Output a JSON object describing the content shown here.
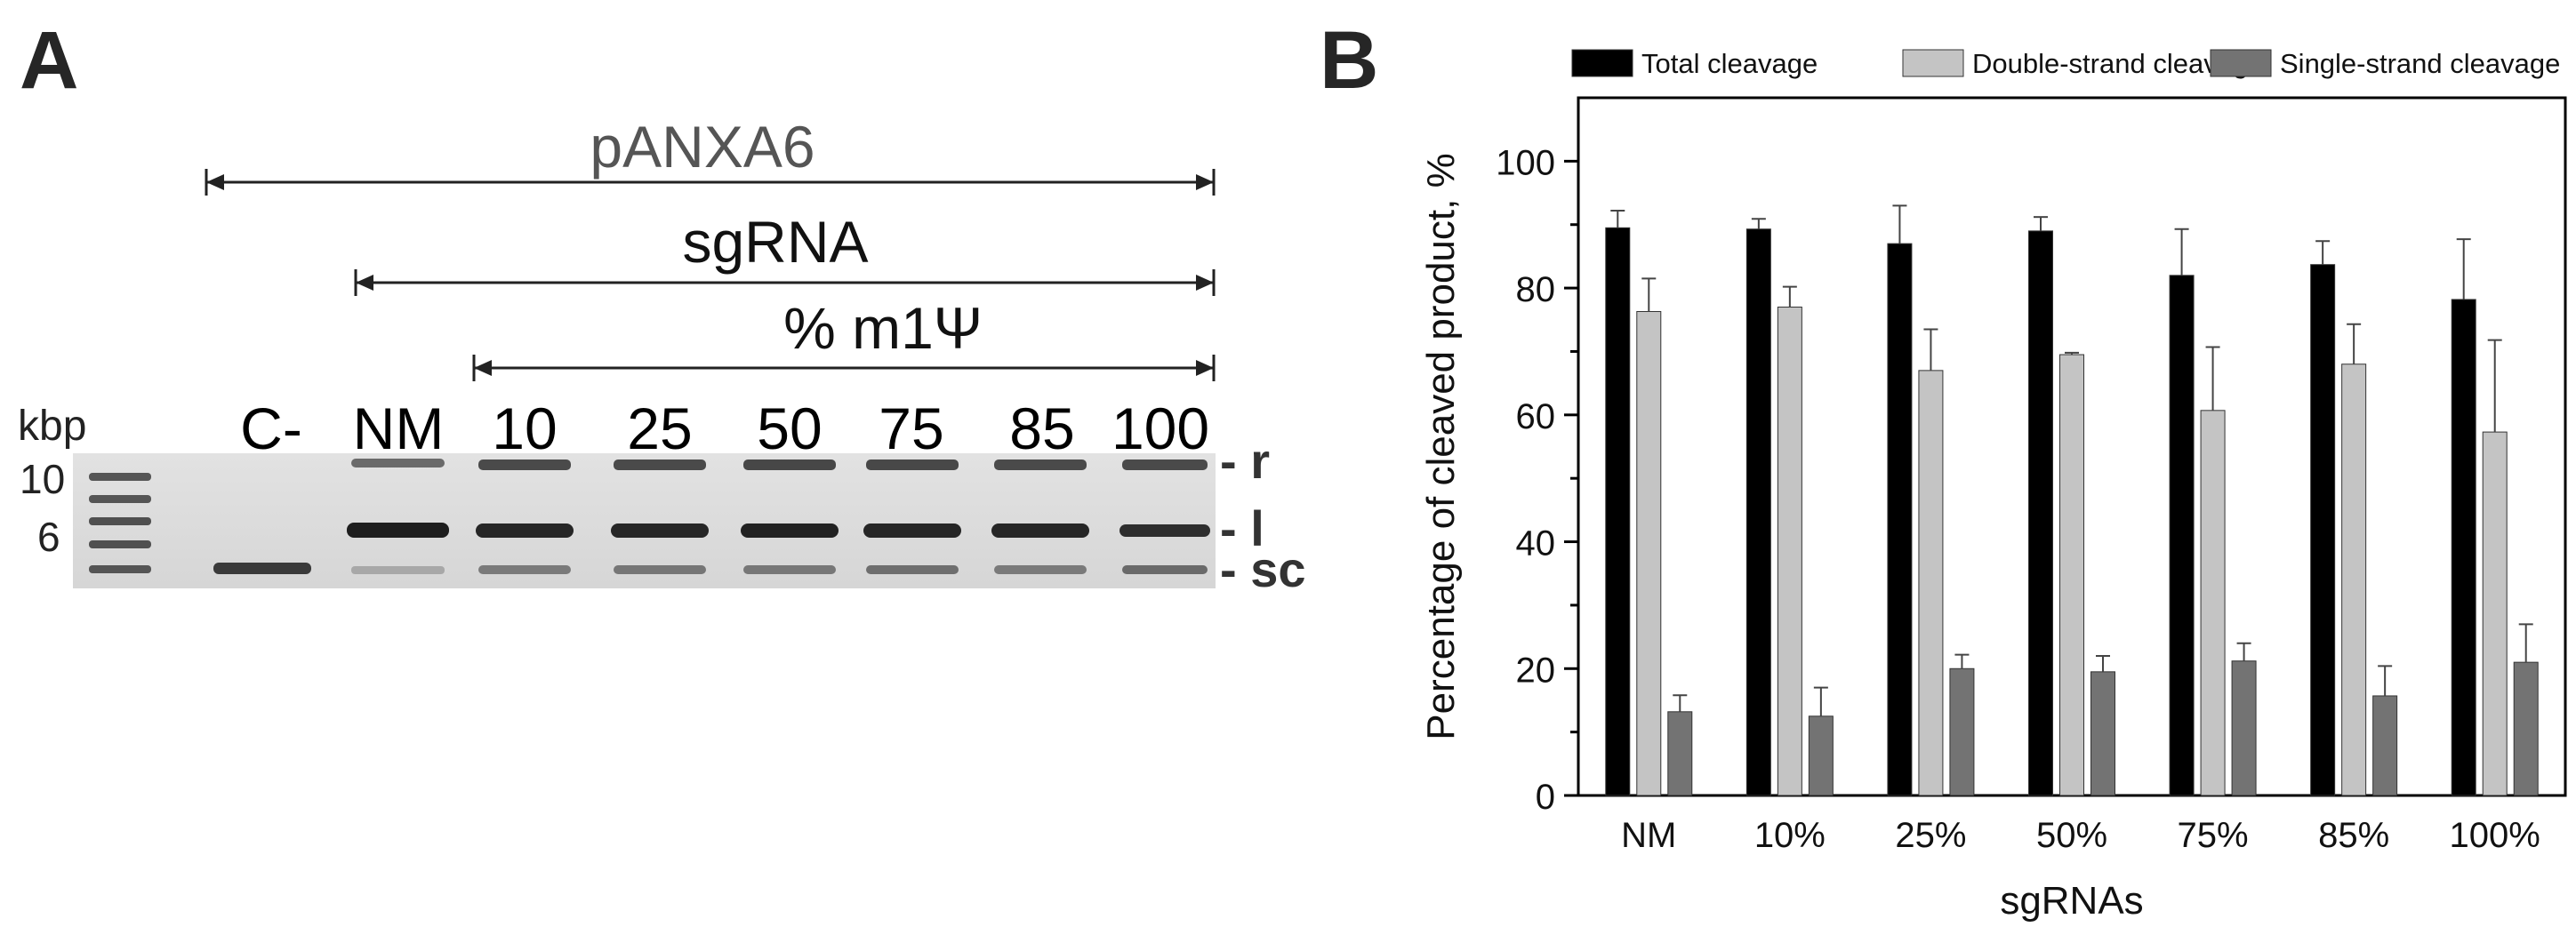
{
  "panel_a": {
    "letter": "A",
    "brackets": [
      {
        "label": "pANXA6"
      },
      {
        "label": "sgRNA"
      },
      {
        "label": "% m1Ψ"
      }
    ],
    "lane_labels": [
      "C-",
      "NM",
      "10",
      "25",
      "50",
      "75",
      "85",
      "100"
    ],
    "ladder_unit": "kbp",
    "ladder_marks": [
      "10",
      "6"
    ],
    "band_labels": [
      "- r",
      "- l",
      "- sc"
    ]
  },
  "panel_b": {
    "letter": "B",
    "chart_data": {
      "type": "bar",
      "categories": [
        "NM",
        "10%",
        "25%",
        "50%",
        "75%",
        "85%",
        "100%"
      ],
      "series": [
        {
          "name": "Total cleavage",
          "color": "#000000",
          "values": [
            89.5,
            89.3,
            87.0,
            89.0,
            82.0,
            83.7,
            78.2
          ],
          "errors": [
            2.7,
            1.6,
            6.0,
            2.2,
            7.3,
            3.7,
            9.5
          ]
        },
        {
          "name": "Double-strand cleavage",
          "color": "#c4c4c4",
          "values": [
            76.3,
            77.0,
            67.0,
            69.5,
            60.7,
            68.0,
            57.3
          ],
          "errors": [
            5.2,
            3.2,
            6.5,
            0.3,
            10.0,
            6.3,
            14.5
          ]
        },
        {
          "name": "Single-strand cleavage",
          "color": "#737373",
          "values": [
            13.2,
            12.5,
            20.0,
            19.5,
            21.2,
            15.7,
            21.0
          ],
          "errors": [
            2.6,
            4.5,
            2.2,
            2.5,
            2.8,
            4.7,
            6.0
          ]
        }
      ],
      "xlabel": "sgRNAs",
      "ylabel": "Percentage of cleaved product, %",
      "ylim": [
        0,
        110
      ],
      "yticks": [
        0,
        20,
        40,
        60,
        80,
        100
      ],
      "legend_position": "top",
      "grid": false
    }
  }
}
